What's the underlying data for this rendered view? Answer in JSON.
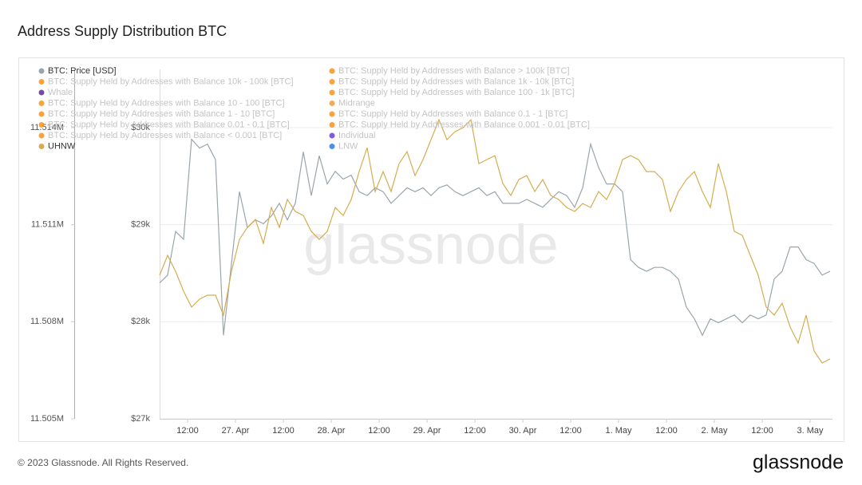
{
  "chart_data": {
    "type": "line",
    "title": "Address Supply Distribution BTC",
    "watermark": "glassnode",
    "x": [
      "26 Apr 05:00",
      "26 Apr 07:00",
      "26 Apr 09:00",
      "26 Apr 11:00",
      "26 Apr 13:00",
      "26 Apr 15:00",
      "26 Apr 17:00",
      "26 Apr 19:00",
      "26 Apr 21:00",
      "26 Apr 23:00",
      "27 Apr 01:00",
      "27 Apr 03:00",
      "27 Apr 05:00",
      "27 Apr 07:00",
      "27 Apr 09:00",
      "27 Apr 11:00",
      "27 Apr 13:00",
      "27 Apr 15:00",
      "27 Apr 17:00",
      "27 Apr 19:00",
      "27 Apr 21:00",
      "27 Apr 23:00",
      "28 Apr 01:00",
      "28 Apr 03:00",
      "28 Apr 05:00",
      "28 Apr 07:00",
      "28 Apr 09:00",
      "28 Apr 11:00",
      "28 Apr 13:00",
      "28 Apr 15:00",
      "28 Apr 17:00",
      "28 Apr 19:00",
      "28 Apr 21:00",
      "28 Apr 23:00",
      "29 Apr 01:00",
      "29 Apr 03:00",
      "29 Apr 05:00",
      "29 Apr 07:00",
      "29 Apr 09:00",
      "29 Apr 11:00",
      "29 Apr 13:00",
      "29 Apr 15:00",
      "29 Apr 17:00",
      "29 Apr 19:00",
      "29 Apr 21:00",
      "29 Apr 23:00",
      "30 Apr 01:00",
      "30 Apr 03:00",
      "30 Apr 05:00",
      "30 Apr 07:00",
      "30 Apr 09:00",
      "30 Apr 11:00",
      "30 Apr 13:00",
      "30 Apr 15:00",
      "30 Apr 17:00",
      "30 Apr 19:00",
      "30 Apr 21:00",
      "30 Apr 23:00",
      "1 May 01:00",
      "1 May 03:00",
      "1 May 05:00",
      "1 May 07:00",
      "1 May 09:00",
      "1 May 11:00",
      "1 May 13:00",
      "1 May 15:00",
      "1 May 17:00",
      "1 May 19:00",
      "1 May 21:00",
      "1 May 23:00",
      "2 May 01:00",
      "2 May 03:00",
      "2 May 05:00",
      "2 May 07:00",
      "2 May 09:00",
      "2 May 11:00",
      "2 May 13:00",
      "2 May 15:00",
      "2 May 17:00",
      "2 May 19:00",
      "2 May 21:00",
      "2 May 23:00",
      "3 May 01:00",
      "3 May 03:00",
      "3 May 05:00"
    ],
    "xlim": [
      "26 Apr 05:00",
      "3 May 05:36"
    ],
    "xticks": [
      {
        "value": "26 Apr 12:00",
        "label": "12:00"
      },
      {
        "value": "27 Apr 00:00",
        "label": "27. Apr"
      },
      {
        "value": "27 Apr 12:00",
        "label": "12:00"
      },
      {
        "value": "28 Apr 00:00",
        "label": "28. Apr"
      },
      {
        "value": "28 Apr 12:00",
        "label": "12:00"
      },
      {
        "value": "29 Apr 00:00",
        "label": "29. Apr"
      },
      {
        "value": "29 Apr 12:00",
        "label": "12:00"
      },
      {
        "value": "30 Apr 00:00",
        "label": "30. Apr"
      },
      {
        "value": "30 Apr 12:00",
        "label": "12:00"
      },
      {
        "value": "1 May 00:00",
        "label": "1. May"
      },
      {
        "value": "1 May 12:00",
        "label": "12:00"
      },
      {
        "value": "2 May 00:00",
        "label": "2. May"
      },
      {
        "value": "2 May 12:00",
        "label": "12:00"
      },
      {
        "value": "3 May 00:00",
        "label": "3. May"
      }
    ],
    "ylim": [
      27000,
      30600
    ],
    "yticks": [
      {
        "value": 27000,
        "label": "$27k"
      },
      {
        "value": 28000,
        "label": "$28k"
      },
      {
        "value": 29000,
        "label": "$29k"
      },
      {
        "value": 30000,
        "label": "$30k"
      }
    ],
    "y2lim": [
      11505000,
      11515800
    ],
    "y2ticks": [
      {
        "value": 11505000,
        "label": "11.505M"
      },
      {
        "value": 11508000,
        "label": "11.508M"
      },
      {
        "value": 11511000,
        "label": "11.511M"
      },
      {
        "value": 11514000,
        "label": "11.514M"
      }
    ],
    "grid": true,
    "series": [
      {
        "name": "BTC: Price [USD]",
        "color": "#9aa5ab",
        "values": [
          28400,
          28480,
          28930,
          28850,
          29880,
          29790,
          29830,
          29670,
          27860,
          28600,
          29340,
          28970,
          29050,
          29010,
          29090,
          29220,
          29050,
          29220,
          29750,
          29300,
          29710,
          29420,
          29550,
          29470,
          29510,
          29340,
          29300,
          29380,
          29340,
          29220,
          29300,
          29380,
          29340,
          29380,
          29300,
          29380,
          29410,
          29340,
          29300,
          29340,
          29380,
          29300,
          29340,
          29220,
          29220,
          29220,
          29260,
          29220,
          29180,
          29260,
          29340,
          29300,
          29180,
          29380,
          29830,
          29590,
          29420,
          29420,
          29340,
          28640,
          28560,
          28520,
          28560,
          28560,
          28520,
          28440,
          28150,
          28030,
          27860,
          28030,
          27990,
          28030,
          28070,
          27990,
          28070,
          28030,
          28070,
          28440,
          28520,
          28770,
          28770,
          28640,
          28600,
          28480,
          28520
        ]
      },
      {
        "name": "BTC: Supply Held by Addresses with Balance > 100k [BTC]",
        "color": "#f7931a",
        "hidden": true
      },
      {
        "name": "BTC: Supply Held by Addresses with Balance 10k - 100k [BTC]",
        "color": "#f7931a",
        "hidden": true
      },
      {
        "name": "BTC: Supply Held by Addresses with Balance 1k - 10k [BTC]",
        "color": "#f7931a",
        "hidden": true
      },
      {
        "name": "Whale",
        "color": "#5b2d8e",
        "hidden": true
      },
      {
        "name": "BTC: Supply Held by Addresses with Balance 100 - 1k [BTC]",
        "color": "#f7931a",
        "hidden": true
      },
      {
        "name": "BTC: Supply Held by Addresses with Balance 10 - 100 [BTC]",
        "color": "#f7931a",
        "hidden": true
      },
      {
        "name": "Midrange",
        "color": "#e6a045",
        "hidden": true
      },
      {
        "name": "BTC: Supply Held by Addresses with Balance 1 - 10 [BTC]",
        "color": "#f7931a",
        "hidden": true
      },
      {
        "name": "BTC: Supply Held by Addresses with Balance 0.1 - 1 [BTC]",
        "color": "#f7931a",
        "hidden": true
      },
      {
        "name": "BTC: Supply Held by Addresses with Balance 0.01 - 0.1 [BTC]",
        "color": "#f7931a",
        "hidden": true
      },
      {
        "name": "BTC: Supply Held by Addresses with Balance 0.001 - 0.01 [BTC]",
        "color": "#f7931a",
        "hidden": true
      },
      {
        "name": "BTC: Supply Held by Addresses with Balance < 0.001 [BTC]",
        "color": "#f7931a",
        "hidden": true
      },
      {
        "name": "Individual",
        "color": "#6a3fd6",
        "hidden": true
      },
      {
        "name": "UHNW",
        "color": "#d4ad52",
        "axis": "y2",
        "values": [
          11509437,
          11510053,
          11509560,
          11508944,
          11508451,
          11508698,
          11508821,
          11508821,
          11508205,
          11509560,
          11510546,
          11510916,
          11511163,
          11510423,
          11511532,
          11510916,
          11511779,
          11511409,
          11511286,
          11510793,
          11510546,
          11510793,
          11511532,
          11511286,
          11511779,
          11512642,
          11513381,
          11512025,
          11512642,
          11512025,
          11512888,
          11513258,
          11512518,
          11513011,
          11513628,
          11514244,
          11513628,
          11513874,
          11513997,
          11514244,
          11512888,
          11513011,
          11513135,
          11512272,
          11511902,
          11512395,
          11512518,
          11512025,
          11512395,
          11511902,
          11511779,
          11511532,
          11511409,
          11511656,
          11511532,
          11512025,
          11511779,
          11512272,
          11513011,
          11513135,
          11513011,
          11512642,
          11512642,
          11512395,
          11511409,
          11512025,
          11512395,
          11512642,
          11512025,
          11511532,
          11512888,
          11512025,
          11510793,
          11510670,
          11510053,
          11509437,
          11508451,
          11508205,
          11508574,
          11507835,
          11507342,
          11508205,
          11507095,
          11506726,
          11506849
        ]
      },
      {
        "name": "LNW",
        "color": "#2f7be5",
        "hidden": true
      }
    ]
  },
  "footer": {
    "copyright": "© 2023 Glassnode. All Rights Reserved.",
    "logo": "glassnode"
  }
}
